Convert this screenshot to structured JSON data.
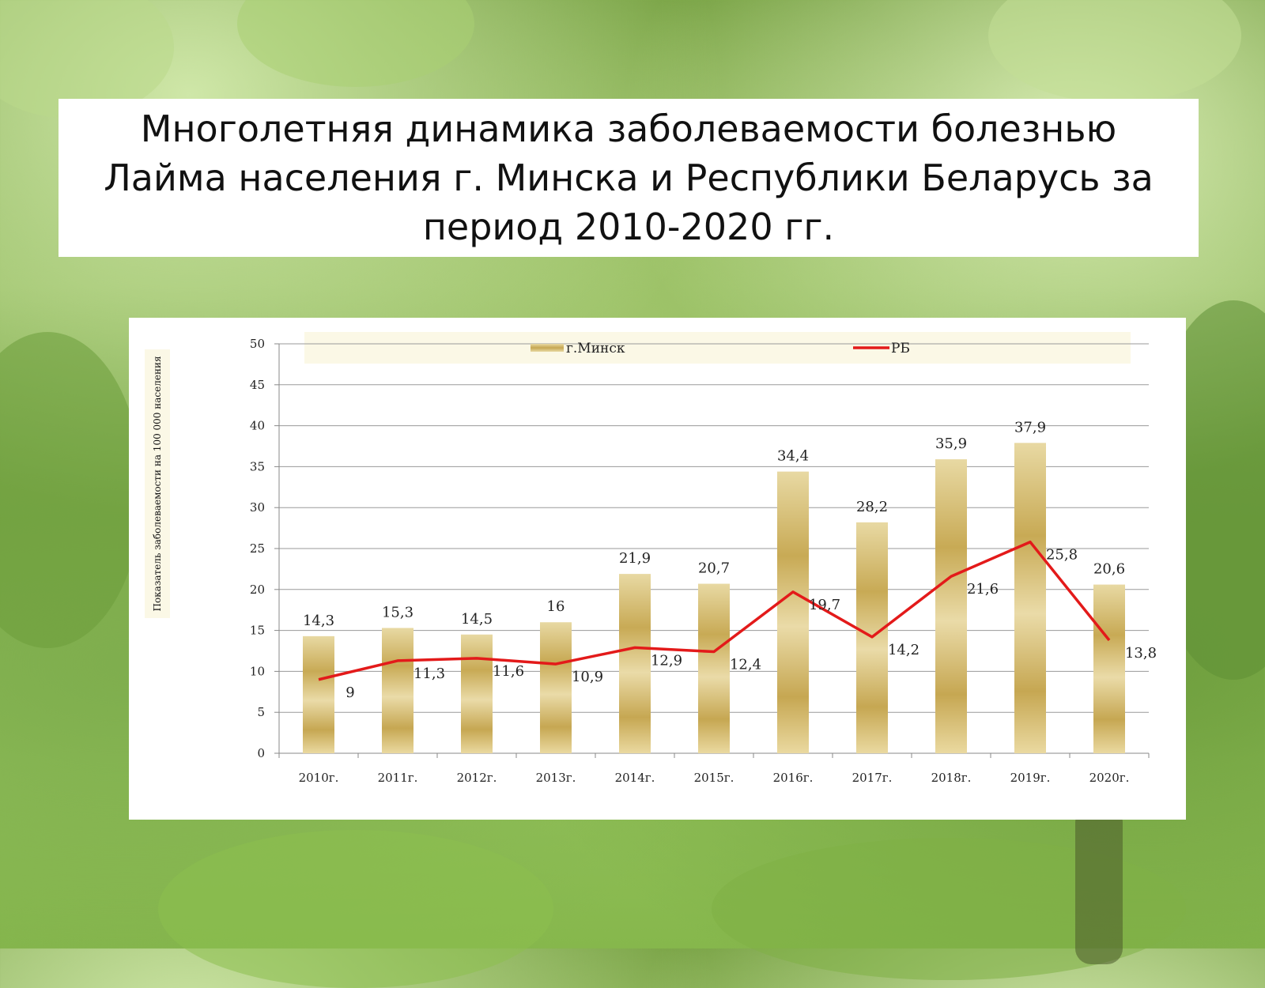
{
  "title": "Многолетняя динамика заболеваемости болезнью Лайма населения г. Минска и Республики Беларусь за период 2010-2020 гг.",
  "chart_data": {
    "type": "bar",
    "ylabel": "Показатель заболеваемости на 100 000 населения",
    "ylim": [
      0,
      50
    ],
    "yticks": [
      "0",
      "5",
      "10",
      "15",
      "20",
      "25",
      "30",
      "35",
      "40",
      "45",
      "50"
    ],
    "grid": true,
    "legend_position": "top",
    "categories": [
      "2010г.",
      "2011г.",
      "2012г.",
      "2013г.",
      "2014г.",
      "2015г.",
      "2016г.",
      "2017г.",
      "2018г.",
      "2019г.",
      "2020г."
    ],
    "series": [
      {
        "name": "г.Минск",
        "type": "bar",
        "color": "#c9ae5a",
        "values": [
          14.3,
          15.3,
          14.5,
          16,
          21.9,
          20.7,
          34.4,
          28.2,
          35.9,
          37.9,
          20.6
        ],
        "labels": [
          "14,3",
          "15,3",
          "14,5",
          "16",
          "21,9",
          "20,7",
          "34,4",
          "28,2",
          "35,9",
          "37,9",
          "20,6"
        ]
      },
      {
        "name": "РБ",
        "type": "line",
        "color": "#e31a1a",
        "values": [
          9,
          11.3,
          11.6,
          10.9,
          12.9,
          12.4,
          19.7,
          14.2,
          21.6,
          25.8,
          13.8
        ],
        "labels": [
          "9",
          "11,3",
          "11,6",
          "10,9",
          "12,9",
          "12,4",
          "19,7",
          "14,2",
          "21,6",
          "25,8",
          "13,8"
        ]
      }
    ]
  }
}
